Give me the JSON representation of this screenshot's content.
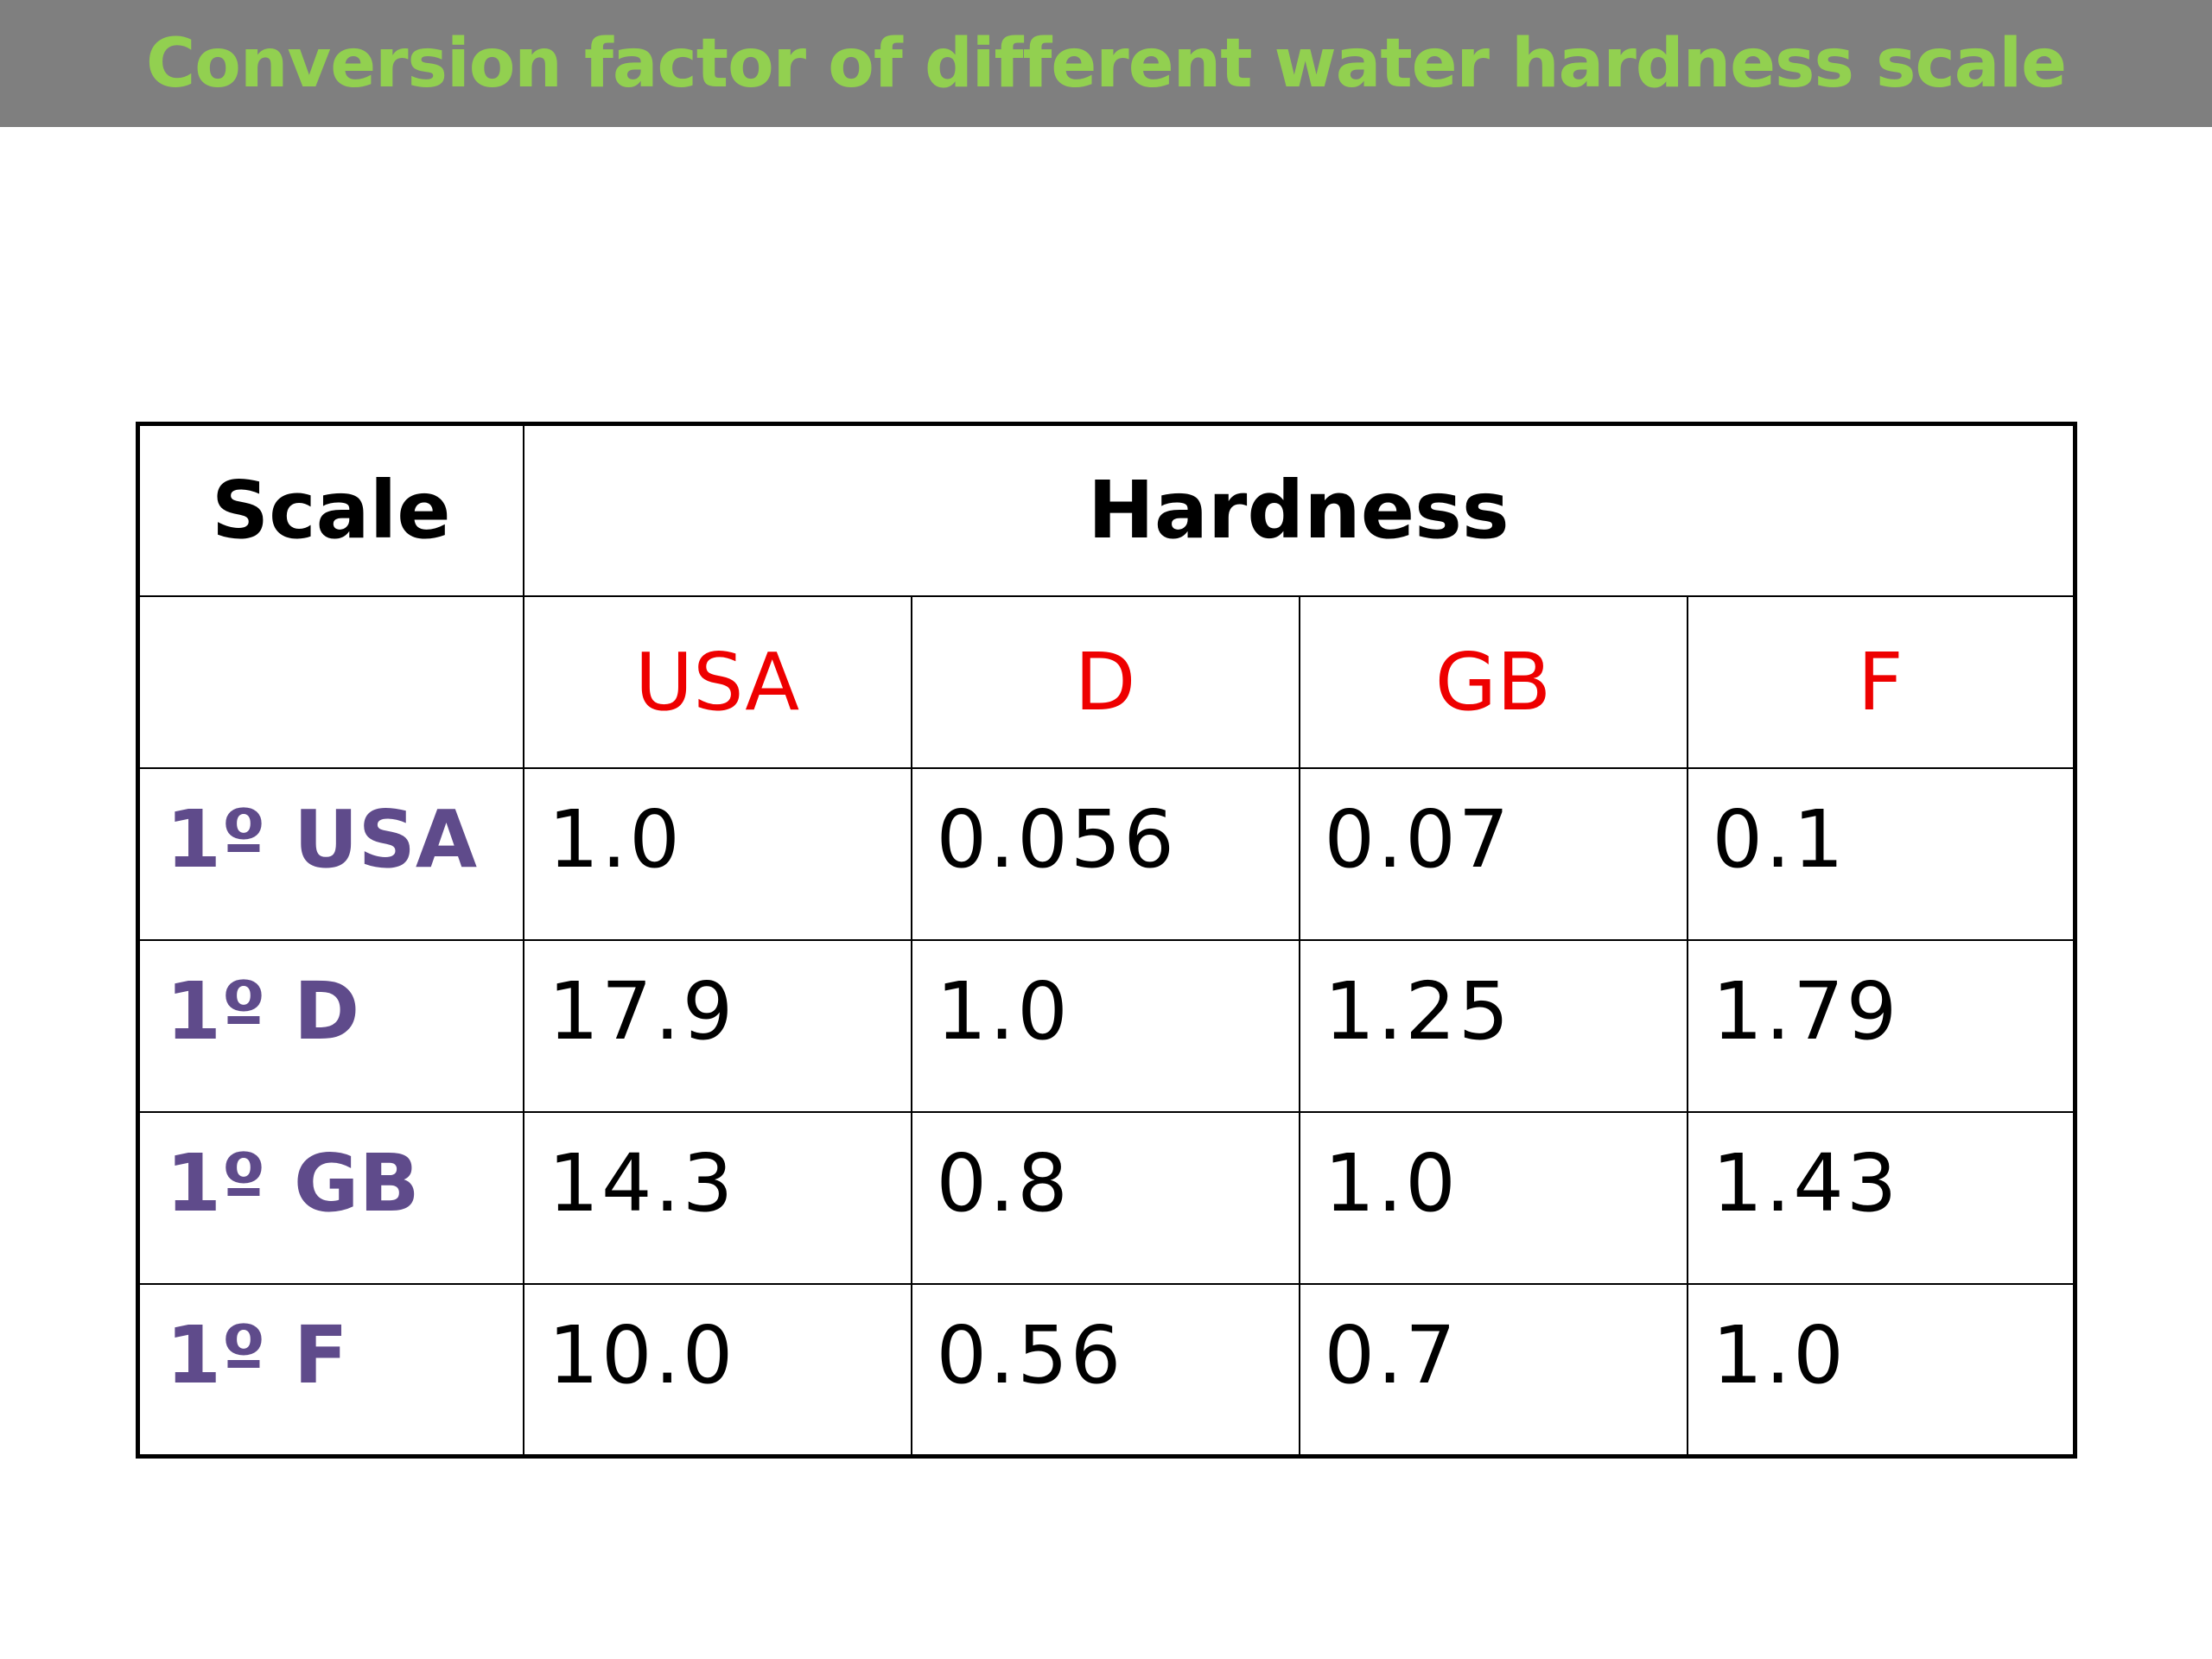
{
  "title": "Conversion factor of different water hardness scale",
  "table": {
    "header_scale": "Scale",
    "header_hardness": "Hardness",
    "units": [
      "USA",
      "D",
      "GB",
      "F"
    ],
    "rows": [
      {
        "label": "1º USA",
        "values": [
          "1.0",
          "0.056",
          "0.07",
          "0.1"
        ]
      },
      {
        "label": "1º D",
        "values": [
          "17.9",
          "1.0",
          "1.25",
          "1.79"
        ]
      },
      {
        "label": "1º GB",
        "values": [
          "14.3",
          "0.8",
          "1.0",
          "1.43"
        ]
      },
      {
        "label": "1º F",
        "values": [
          "10.0",
          "0.56",
          "0.7",
          "1.0"
        ]
      }
    ]
  },
  "colors": {
    "title_bar": "#7f7f7f",
    "title_text": "#92d050",
    "unit_header": "#ee0000",
    "row_label": "#5f4b8b"
  }
}
